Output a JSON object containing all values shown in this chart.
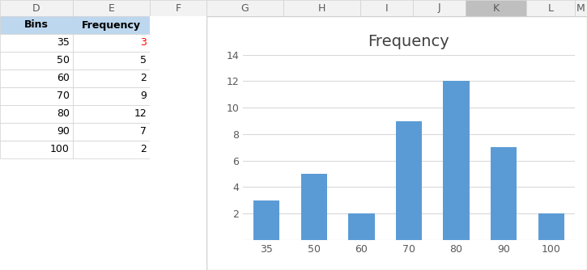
{
  "bins": [
    35,
    50,
    60,
    70,
    80,
    90,
    100
  ],
  "frequencies": [
    3,
    5,
    2,
    9,
    12,
    7,
    2
  ],
  "title": "Frequency",
  "bar_color": "#5B9BD5",
  "background_color": "#FFFFFF",
  "excel_bg": "#F0F0F0",
  "col_header_bg": "#F2F2F2",
  "col_header_selected_bg": "#BFBFBF",
  "col_header_text": "#595959",
  "col_headers": [
    "D",
    "E",
    "F",
    "G",
    "H",
    "I",
    "J",
    "K",
    "L",
    "M"
  ],
  "table_header_bg": "#BDD7EE",
  "table_header_text_color": "#000000",
  "table_cell_bg": "#FFFFFF",
  "table_border_color": "#D0D0D0",
  "cell_text_color": "#000000",
  "freq_number_color": "#FF0000",
  "ylim": [
    0,
    14
  ],
  "yticks": [
    0,
    2,
    4,
    6,
    8,
    10,
    12,
    14
  ],
  "title_fontsize": 14,
  "tick_fontsize": 9,
  "title_color": "#404040",
  "tick_color": "#595959",
  "grid_color": "#D9D9D9",
  "bar_width": 0.55,
  "chart_border_color": "#D0D0D0"
}
